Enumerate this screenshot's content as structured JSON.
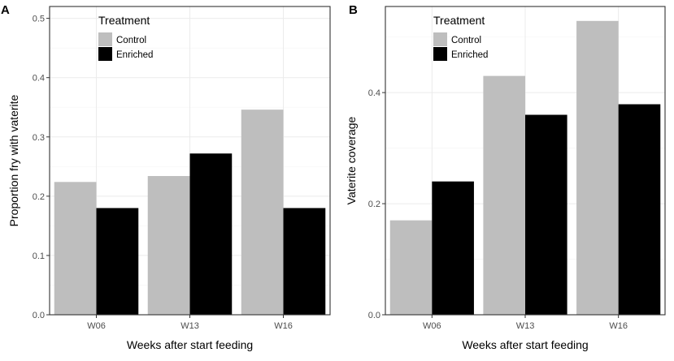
{
  "chart_data": [
    {
      "panel_tag": "A",
      "type": "bar",
      "categories": [
        "W06",
        "W13",
        "W16"
      ],
      "series": [
        {
          "name": "Control",
          "values": [
            0.224,
            0.234,
            0.346
          ]
        },
        {
          "name": "Enriched",
          "values": [
            0.18,
            0.272,
            0.18
          ]
        }
      ],
      "xlabel": "Weeks after start feeding",
      "ylabel": "Proportion fry with vaterite",
      "ylim": [
        0,
        0.52
      ],
      "yticks": [
        0.0,
        0.1,
        0.2,
        0.3,
        0.4,
        0.5
      ],
      "ytick_labels": [
        "0.0",
        "0.1",
        "0.2",
        "0.3",
        "0.4",
        "0.5"
      ],
      "grid": true,
      "legend": {
        "title": "Treatment",
        "placement": "top-left",
        "entries": [
          "Control",
          "Enriched"
        ]
      }
    },
    {
      "panel_tag": "B",
      "type": "bar",
      "categories": [
        "W06",
        "W13",
        "W16"
      ],
      "series": [
        {
          "name": "Control",
          "values": [
            0.17,
            0.43,
            0.529
          ]
        },
        {
          "name": "Enriched",
          "values": [
            0.24,
            0.36,
            0.379
          ]
        }
      ],
      "xlabel": "Weeks after start feeding",
      "ylabel": "Vaterite coverage",
      "ylim": [
        0,
        0.555
      ],
      "yticks": [
        0.0,
        0.2,
        0.4
      ],
      "ytick_labels": [
        "0.0",
        "0.2",
        "0.4"
      ],
      "grid": true,
      "legend": {
        "title": "Treatment",
        "placement": "top-left",
        "entries": [
          "Control",
          "Enriched"
        ]
      }
    }
  ],
  "colors": {
    "Control": "#bebebe",
    "Enriched": "#000000"
  }
}
